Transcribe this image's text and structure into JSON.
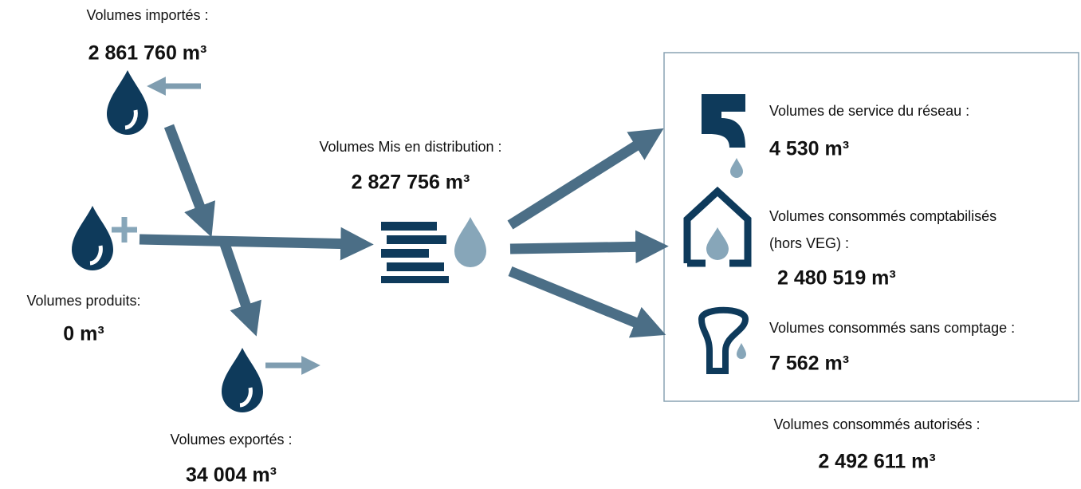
{
  "nodes": [
    {
      "label": "Volumes importés :",
      "value": "2 861 760 m³"
    },
    {
      "label": "Volumes produits:",
      "value": "0 m³"
    },
    {
      "label": "Volumes exportés :",
      "value": "34 004 m³"
    },
    {
      "label": "Volumes Mis en distribution :",
      "value": "2 827 756 m³"
    },
    {
      "label": "Volumes de service du réseau :",
      "value": "4 530 m³"
    },
    {
      "label": [
        "Volumes consommés comptabilisés",
        "(hors VEG) :"
      ],
      "value": "2 480 519 m³"
    },
    {
      "label": "Volumes consommés sans comptage :",
      "value": "7 562 m³"
    },
    {
      "label": "Volumes consommés autorisés :",
      "value": "2 492 611 m³"
    }
  ]
}
